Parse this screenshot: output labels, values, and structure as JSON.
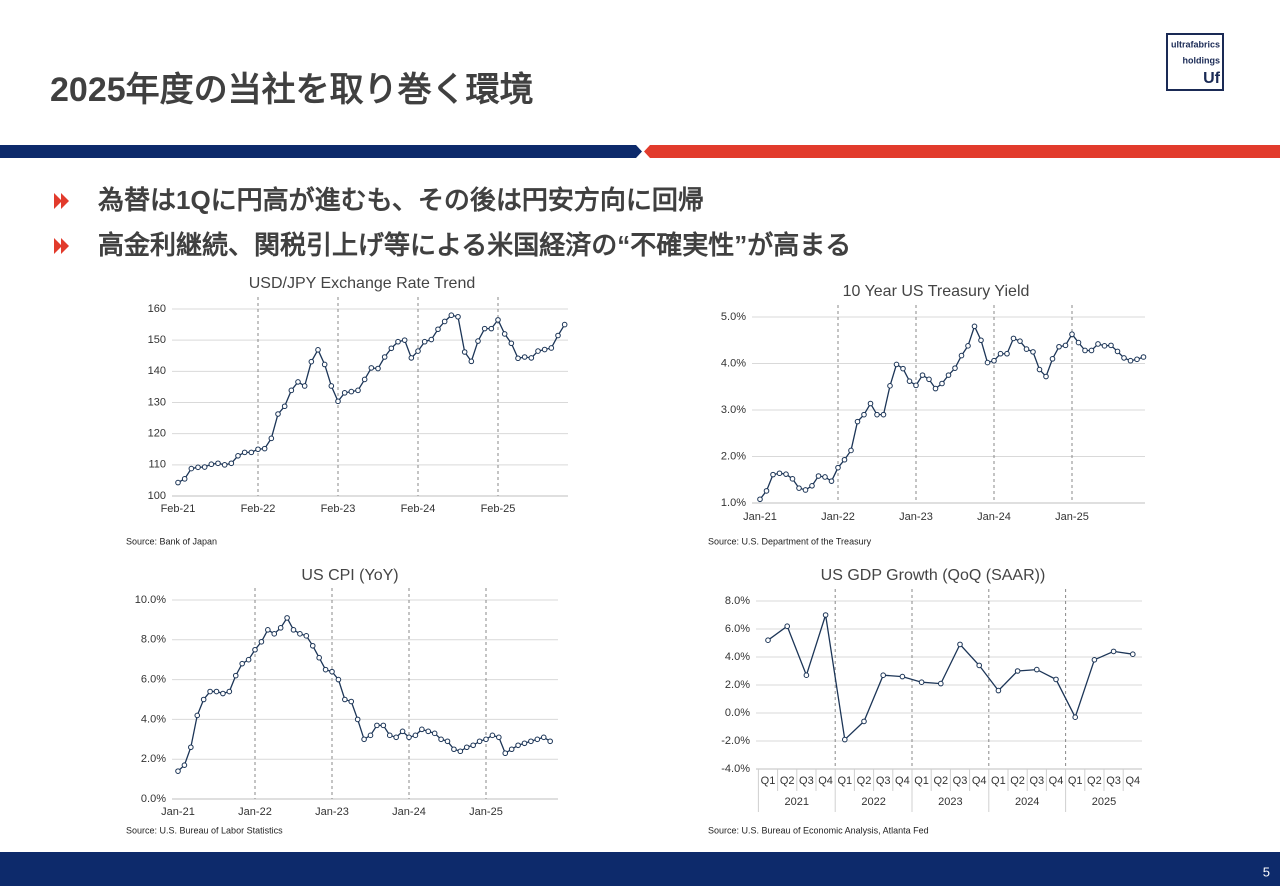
{
  "header": {
    "title": "2025年度の当社を取り巻く環境",
    "logo": [
      "ultrafabrics",
      "holdings",
      "Uf"
    ]
  },
  "bullets": [
    "為替は1Qに円高が進むも、その後は円安方向に回帰",
    "高金利継続、関税引上げ等による米国経済の“不確実性”が高まる"
  ],
  "page_number": 5,
  "chart_data": [
    {
      "type": "line",
      "title": "USD/JPY Exchange Rate Trend",
      "source": "Source: Bank of Japan",
      "color": "#1c3557",
      "categories": [
        "Feb-21",
        null,
        null,
        null,
        null,
        null,
        null,
        null,
        null,
        null,
        null,
        null,
        "Feb-22",
        null,
        null,
        null,
        null,
        null,
        null,
        null,
        null,
        null,
        null,
        null,
        "Feb-23",
        null,
        null,
        null,
        null,
        null,
        null,
        null,
        null,
        null,
        null,
        null,
        "Feb-24",
        null,
        null,
        null,
        null,
        null,
        null,
        null,
        null,
        null,
        null,
        null,
        "Feb-25",
        null,
        null,
        null,
        null,
        null,
        null,
        null,
        null,
        null,
        null
      ],
      "values": [
        104.3,
        105.5,
        108.8,
        109.2,
        109.3,
        110.2,
        110.5,
        110.0,
        110.5,
        112.9,
        114.0,
        114.0,
        115.0,
        115.2,
        118.5,
        126.3,
        128.8,
        133.9,
        136.6,
        135.3,
        143.1,
        146.9,
        142.2,
        135.3,
        130.4,
        133.1,
        133.5,
        133.9,
        137.4,
        141.1,
        140.9,
        144.6,
        147.4,
        149.5,
        150.0,
        144.3,
        146.5,
        149.5,
        150.2,
        153.5,
        156.0,
        158.0,
        157.5,
        146.2,
        143.2,
        149.7,
        153.7,
        153.7,
        156.5,
        152.0,
        149.0,
        144.2,
        144.6,
        144.3,
        146.5,
        147.0,
        147.5,
        151.5,
        155.0
      ],
      "ylim": [
        100,
        160
      ],
      "yticks": [
        100,
        110,
        120,
        130,
        140,
        150,
        160
      ],
      "grid": true
    },
    {
      "type": "line",
      "title": "10 Year US Treasury Yield",
      "source": "Source: U.S. Department of the Treasury",
      "color": "#1c3557",
      "categories": [
        "Jan-21",
        null,
        null,
        null,
        null,
        null,
        null,
        null,
        null,
        null,
        null,
        null,
        "Jan-22",
        null,
        null,
        null,
        null,
        null,
        null,
        null,
        null,
        null,
        null,
        null,
        "Jan-23",
        null,
        null,
        null,
        null,
        null,
        null,
        null,
        null,
        null,
        null,
        null,
        "Jan-24",
        null,
        null,
        null,
        null,
        null,
        null,
        null,
        null,
        null,
        null,
        null,
        "Jan-25",
        null,
        null,
        null,
        null,
        null,
        null,
        null,
        null,
        null,
        null,
        null
      ],
      "values": [
        1.08,
        1.26,
        1.61,
        1.64,
        1.62,
        1.52,
        1.32,
        1.28,
        1.37,
        1.58,
        1.56,
        1.47,
        1.76,
        1.93,
        2.13,
        2.75,
        2.9,
        3.14,
        2.9,
        2.9,
        3.52,
        3.98,
        3.89,
        3.62,
        3.53,
        3.75,
        3.66,
        3.46,
        3.57,
        3.75,
        3.9,
        4.17,
        4.38,
        4.8,
        4.5,
        4.02,
        4.06,
        4.21,
        4.21,
        4.54,
        4.48,
        4.31,
        4.25,
        3.87,
        3.72,
        4.1,
        4.36,
        4.39,
        4.63,
        4.45,
        4.28,
        4.28,
        4.42,
        4.38,
        4.39,
        4.26,
        4.12,
        4.06,
        4.09,
        4.14
      ],
      "ylim": [
        1,
        5
      ],
      "yticks": [
        {
          "value": 1,
          "label": "1.0%"
        },
        {
          "value": 2,
          "label": "2.0%"
        },
        {
          "value": 3,
          "label": "3.0%"
        },
        {
          "value": 4,
          "label": "4.0%"
        },
        {
          "value": 5,
          "label": "5.0%"
        }
      ],
      "grid": true
    },
    {
      "type": "line",
      "title": "US CPI (YoY)",
      "source": "Source: U.S. Bureau of Labor Statistics",
      "color": "#1c3557",
      "categories": [
        "Jan-21",
        null,
        null,
        null,
        null,
        null,
        null,
        null,
        null,
        null,
        null,
        null,
        "Jan-22",
        null,
        null,
        null,
        null,
        null,
        null,
        null,
        null,
        null,
        null,
        null,
        "Jan-23",
        null,
        null,
        null,
        null,
        null,
        null,
        null,
        null,
        null,
        null,
        null,
        "Jan-24",
        null,
        null,
        null,
        null,
        null,
        null,
        null,
        null,
        null,
        null,
        null,
        "Jan-25",
        null,
        null,
        null,
        null,
        null,
        null,
        null,
        null,
        null,
        null
      ],
      "values": [
        1.4,
        1.7,
        2.6,
        4.2,
        5.0,
        5.4,
        5.4,
        5.3,
        5.4,
        6.2,
        6.8,
        7.0,
        7.5,
        7.9,
        8.5,
        8.3,
        8.6,
        9.1,
        8.5,
        8.3,
        8.2,
        7.7,
        7.1,
        6.5,
        6.4,
        6.0,
        5.0,
        4.9,
        4.0,
        3.0,
        3.2,
        3.7,
        3.7,
        3.2,
        3.1,
        3.4,
        3.1,
        3.2,
        3.5,
        3.4,
        3.3,
        3.0,
        2.9,
        2.5,
        2.4,
        2.6,
        2.7,
        2.9,
        3.0,
        3.2,
        3.1,
        2.3,
        2.5,
        2.7,
        2.8,
        2.9,
        3.0,
        3.1,
        2.9
      ],
      "ylim": [
        0,
        10
      ],
      "yticks": [
        {
          "value": 0,
          "label": "0.0%"
        },
        {
          "value": 2,
          "label": "2.0%"
        },
        {
          "value": 4,
          "label": "4.0%"
        },
        {
          "value": 6,
          "label": "6.0%"
        },
        {
          "value": 8,
          "label": "8.0%"
        },
        {
          "value": 10,
          "label": "10.0%"
        }
      ],
      "grid": true
    },
    {
      "type": "line",
      "title": "US GDP Growth (QoQ (SAAR))",
      "source": "Source: U.S. Bureau of Economic Analysis, Atlanta Fed",
      "color": "#1c3557",
      "categories": [
        "Q1",
        "Q2",
        "Q3",
        "Q4",
        "Q1",
        "Q2",
        "Q3",
        "Q4",
        "Q1",
        "Q2",
        "Q3",
        "Q4",
        "Q1",
        "Q2",
        "Q3",
        "Q4",
        "Q1",
        "Q2",
        "Q3",
        "Q4"
      ],
      "group_labels": [
        "2021",
        "2022",
        "2023",
        "2024",
        "2025"
      ],
      "values": [
        5.2,
        6.2,
        2.7,
        7.0,
        -1.9,
        -0.6,
        2.7,
        2.6,
        2.2,
        2.1,
        4.9,
        3.4,
        1.6,
        3.0,
        3.1,
        2.4,
        -0.3,
        3.8,
        4.4,
        4.2
      ],
      "ylim": [
        -4,
        8
      ],
      "yticks": [
        {
          "value": -4,
          "label": "-4.0%"
        },
        {
          "value": -2,
          "label": "-2.0%"
        },
        {
          "value": 0,
          "label": "0.0%"
        },
        {
          "value": 2,
          "label": "2.0%"
        },
        {
          "value": 4,
          "label": "4.0%"
        },
        {
          "value": 6,
          "label": "6.0%"
        },
        {
          "value": 8,
          "label": "8.0%"
        }
      ],
      "grid": true
    }
  ]
}
